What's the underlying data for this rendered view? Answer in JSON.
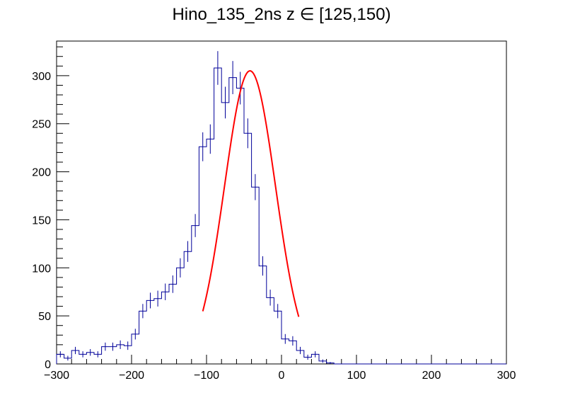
{
  "chart_data": {
    "type": "histogram",
    "title": "Hino_135_2ns z  ∈ [125,150)",
    "xlabel": "",
    "ylabel": "",
    "xlim": [
      -300,
      300
    ],
    "ylim": [
      0,
      336
    ],
    "bin_width": 10,
    "x_ticks": [
      "−300",
      "−200",
      "−100",
      "0",
      "100",
      "200",
      "300"
    ],
    "x_tick_values": [
      -300,
      -200,
      -100,
      0,
      100,
      200,
      300
    ],
    "y_ticks": [
      "0",
      "50",
      "100",
      "150",
      "200",
      "250",
      "300"
    ],
    "y_tick_values": [
      0,
      50,
      100,
      150,
      200,
      250,
      300
    ],
    "bin_low_edges": [
      -300,
      -290,
      -280,
      -270,
      -260,
      -250,
      -240,
      -230,
      -220,
      -210,
      -200,
      -190,
      -180,
      -170,
      -160,
      -150,
      -140,
      -130,
      -120,
      -110,
      -100,
      -90,
      -80,
      -70,
      -60,
      -50,
      -40,
      -30,
      -20,
      -10,
      0,
      10,
      20,
      30,
      40,
      50,
      60,
      70,
      80,
      90,
      100,
      110,
      120,
      130,
      140,
      150,
      160,
      170,
      180,
      190,
      200,
      210,
      220,
      230,
      240,
      250,
      260,
      270,
      280,
      290
    ],
    "counts": [
      10,
      6,
      14,
      10,
      12,
      10,
      18,
      18,
      20,
      19,
      31,
      55,
      66,
      68,
      75,
      83,
      100,
      117,
      144,
      226,
      234,
      308,
      272,
      298,
      287,
      240,
      184,
      102,
      69,
      55,
      26,
      24,
      14,
      7,
      10,
      3,
      1,
      0,
      0,
      0,
      0,
      0,
      0,
      0,
      0,
      0,
      0,
      0,
      0,
      0,
      0,
      0,
      0,
      0,
      0,
      0,
      0,
      0,
      0,
      0
    ],
    "fit": {
      "function": "gaussian",
      "constant": 305,
      "mean": -42,
      "sigma": 34,
      "range": [
        -105,
        23
      ]
    },
    "colors": {
      "histogram": "#000099",
      "fit": "#ff0000",
      "axis": "#000000"
    },
    "grid": false
  }
}
